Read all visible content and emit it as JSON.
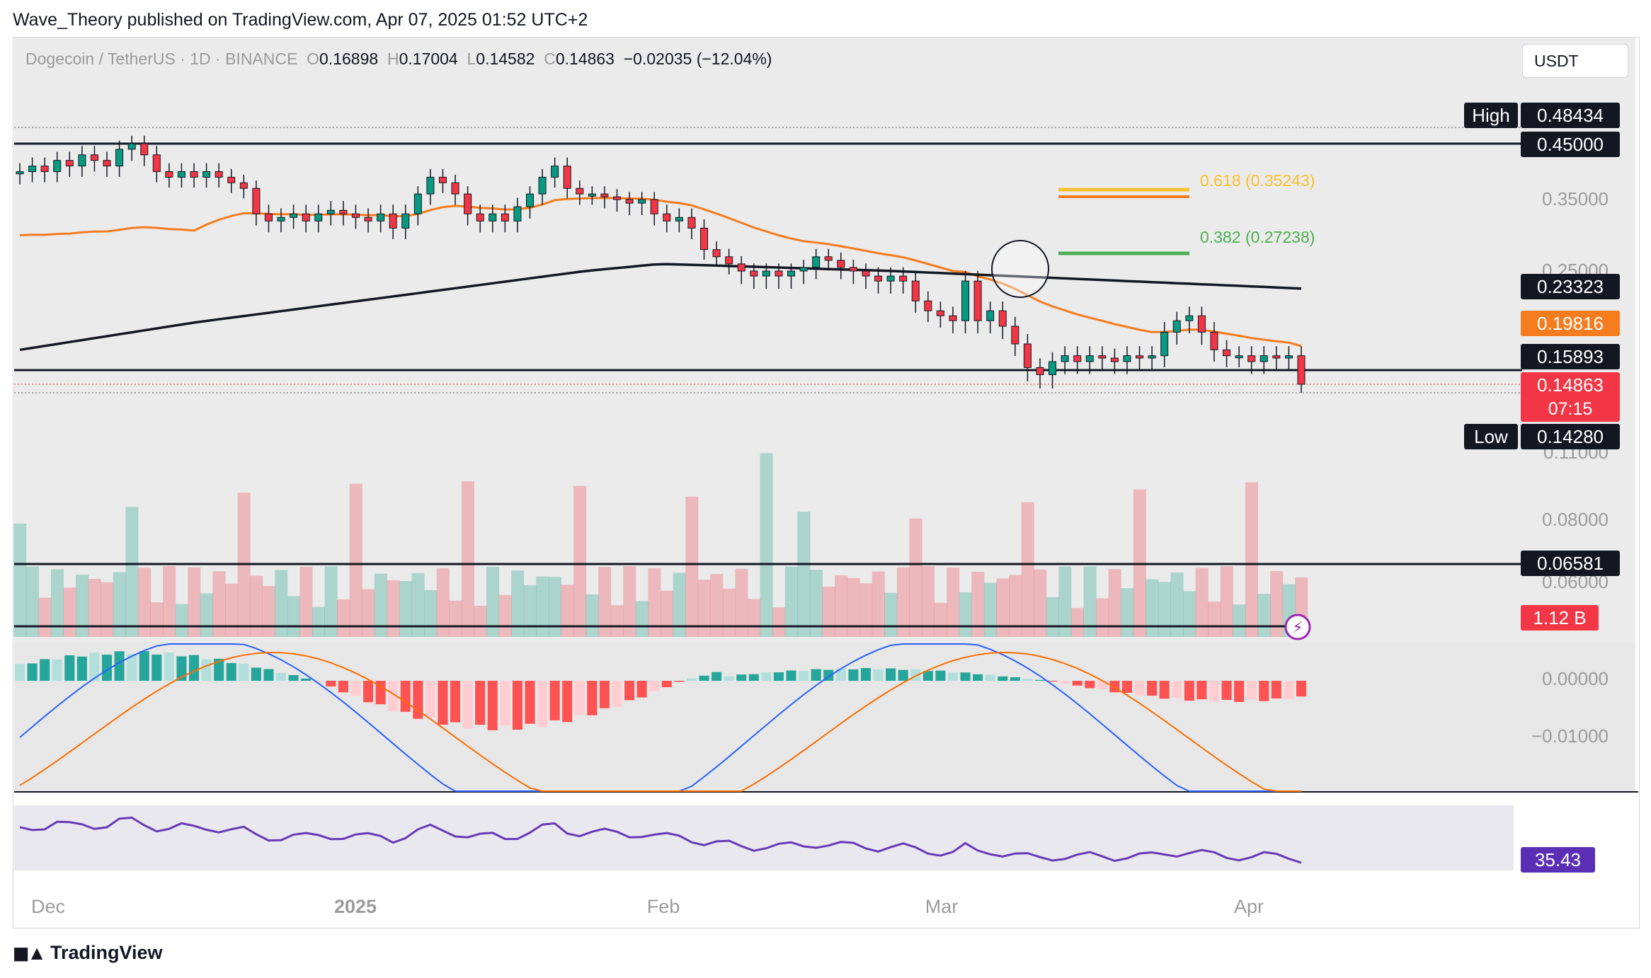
{
  "publisher": "Wave_Theory published on TradingView.com, Apr 07, 2025 01:52 UTC+2",
  "header": {
    "symbol": "Dogecoin / TetherUS · 1D · BINANCE",
    "o_label": "O",
    "o": "0.16898",
    "h_label": "H",
    "h": "0.17004",
    "l_label": "L",
    "l": "0.14582",
    "c_label": "C",
    "c": "0.14863",
    "change": "−0.02035 (−12.04%)"
  },
  "currency": "USDT",
  "brand": "TradingView",
  "colors": {
    "up": "#089981",
    "down": "#f23645",
    "ema50": "#f57c1f",
    "ema200": "#131722",
    "fib618": "#fbc02d",
    "fib382": "#4caf50",
    "rsi": "#673ab7",
    "macd": "#2962ff",
    "signal": "#ff6d00"
  },
  "chart_data": [
    {
      "type": "candlestick",
      "title": "Dogecoin / TetherUS · 1D · BINANCE",
      "x_tick_labels": [
        "Dec",
        "2025",
        "Feb",
        "Mar",
        "Apr"
      ],
      "y_tick_labels": [
        "0.35000",
        "0.25000",
        "0.11000",
        "0.08000",
        "0.06000",
        "0.00000",
        "−0.01000"
      ],
      "ohlc": {
        "open": 0.16898,
        "high": 0.17004,
        "low": 0.14582,
        "close": 0.14863,
        "change": -0.02035,
        "change_pct": -12.04
      },
      "countdown": "07:15",
      "price_markers": [
        {
          "label": "High",
          "value": "0.48434"
        },
        {
          "label": "",
          "value": "0.45000"
        },
        {
          "label": "",
          "value": "0.23323"
        },
        {
          "label": "",
          "value": "0.19816"
        },
        {
          "label": "",
          "value": "0.15893"
        },
        {
          "label": "",
          "value": "0.14863"
        },
        {
          "label": "Low",
          "value": "0.14280"
        },
        {
          "label": "",
          "value": "0.06581"
        },
        {
          "label": "",
          "value": "1.12 B"
        },
        {
          "label": "",
          "value": "35.43"
        }
      ],
      "horizontal_levels": [
        0.48434,
        0.45,
        0.15893,
        0.14863,
        0.0658
      ],
      "fib_levels": [
        {
          "label": "0.618 (0.35243)",
          "value": 0.35243
        },
        {
          "label": "0.382 (0.27238)",
          "value": 0.27238
        }
      ],
      "moving_averages": {
        "ema_50_last": 0.19816,
        "ema_200_last": 0.23323
      },
      "candles_approx": [
        0.4,
        0.41,
        0.4,
        0.42,
        0.41,
        0.43,
        0.42,
        0.41,
        0.44,
        0.45,
        0.43,
        0.4,
        0.39,
        0.4,
        0.39,
        0.4,
        0.39,
        0.38,
        0.37,
        0.33,
        0.32,
        0.325,
        0.33,
        0.32,
        0.33,
        0.335,
        0.33,
        0.325,
        0.32,
        0.33,
        0.31,
        0.33,
        0.36,
        0.39,
        0.38,
        0.36,
        0.33,
        0.32,
        0.33,
        0.32,
        0.34,
        0.36,
        0.39,
        0.41,
        0.37,
        0.36,
        0.36,
        0.355,
        0.35,
        0.345,
        0.35,
        0.33,
        0.32,
        0.325,
        0.31,
        0.28,
        0.27,
        0.26,
        0.25,
        0.245,
        0.25,
        0.245,
        0.25,
        0.255,
        0.27,
        0.265,
        0.255,
        0.25,
        0.245,
        0.24,
        0.245,
        0.24,
        0.22,
        0.21,
        0.205,
        0.2,
        0.24,
        0.2,
        0.21,
        0.195,
        0.18,
        0.16,
        0.155,
        0.165,
        0.17,
        0.165,
        0.17,
        0.168,
        0.165,
        0.17,
        0.168,
        0.17,
        0.19,
        0.2,
        0.205,
        0.19,
        0.175,
        0.17,
        0.17,
        0.165,
        0.17,
        0.168,
        0.17,
        0.1486
      ],
      "volume_label": "1.12 B",
      "rsi_last": 35.43
    }
  ]
}
